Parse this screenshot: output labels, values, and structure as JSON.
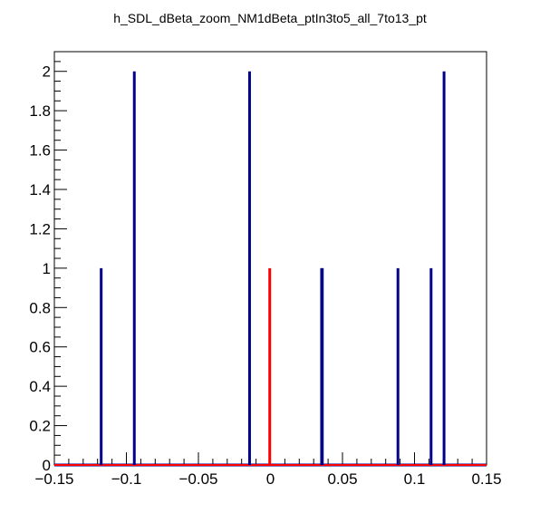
{
  "chart_data": {
    "type": "bar",
    "title": "h_SDL_dBeta_zoom_NM1dBeta_ptIn3to5_all_7to13_pt",
    "xlabel": "",
    "ylabel": "",
    "xlim": [
      -0.15,
      0.15
    ],
    "ylim": [
      0,
      2.1
    ],
    "x_ticks": [
      -0.15,
      -0.1,
      -0.05,
      0,
      0.05,
      0.1,
      0.15
    ],
    "x_tick_labels": [
      "−0.15",
      "−0.1",
      "−0.05",
      "0",
      "0.05",
      "0.1",
      "0.15"
    ],
    "y_ticks": [
      0,
      0.2,
      0.4,
      0.6,
      0.8,
      1,
      1.2,
      1.4,
      1.6,
      1.8,
      2
    ],
    "y_tick_labels": [
      "0",
      "0.2",
      "0.4",
      "0.6",
      "0.8",
      "1",
      "1.2",
      "1.4",
      "1.6",
      "1.8",
      "2"
    ],
    "grid": false,
    "series": [
      {
        "color": "#00008b",
        "x": [
          -0.1175,
          -0.0945,
          -0.0145,
          0.0355,
          0.036,
          0.0885,
          0.1115,
          0.1205
        ],
        "values": [
          1,
          2,
          2,
          1,
          1,
          1,
          1,
          2
        ]
      },
      {
        "color": "#ff0000",
        "x": [
          -0.0005
        ],
        "values": [
          1
        ]
      }
    ]
  }
}
